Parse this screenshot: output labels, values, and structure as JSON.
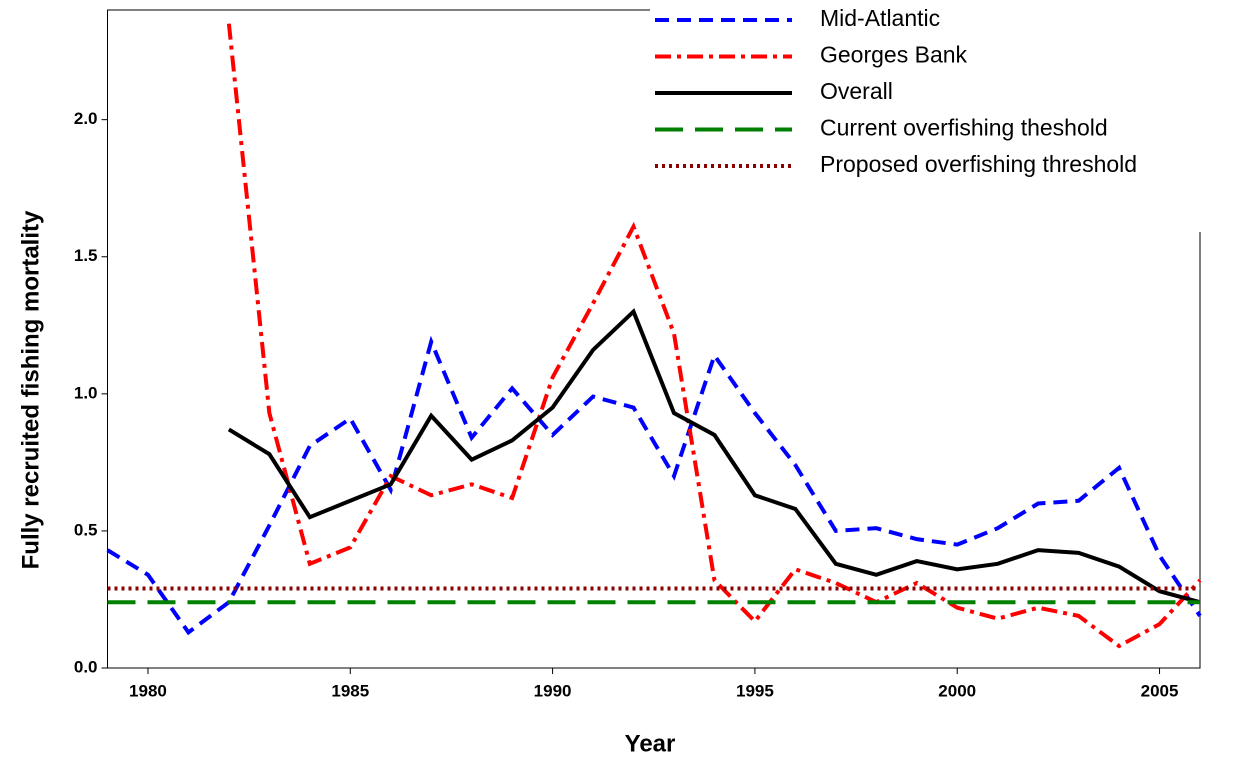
{
  "chart_data": {
    "type": "line",
    "x_label": "Year",
    "y_label": "Fully recruited fishing mortality",
    "x": [
      1979,
      1980,
      1981,
      1982,
      1983,
      1984,
      1985,
      1986,
      1987,
      1988,
      1989,
      1990,
      1991,
      1992,
      1993,
      1994,
      1995,
      1996,
      1997,
      1998,
      1999,
      2000,
      2001,
      2002,
      2003,
      2004,
      2005,
      2006
    ],
    "xlim": [
      1979,
      2006
    ],
    "xticks": [
      1980,
      1985,
      1990,
      1995,
      2000,
      2005
    ],
    "ylim": [
      0,
      2.4
    ],
    "yticks": [
      {
        "value": 0,
        "label": "0.0"
      },
      {
        "value": 0.5,
        "label": "0.5"
      },
      {
        "value": 1,
        "label": "1.0"
      },
      {
        "value": 1.5,
        "label": "1.5"
      },
      {
        "value": 2,
        "label": "2.0"
      }
    ],
    "series": [
      {
        "name": "Mid-Atlantic",
        "color": "#0000ff",
        "dash": "14 8",
        "values": [
          0.43,
          0.34,
          0.13,
          0.24,
          0.52,
          0.81,
          0.91,
          0.65,
          1.19,
          0.84,
          1.02,
          0.85,
          0.99,
          0.95,
          0.7,
          1.14,
          0.93,
          0.74,
          0.5,
          0.51,
          0.47,
          0.45,
          0.51,
          0.6,
          0.61,
          0.73,
          0.41,
          0.19
        ]
      },
      {
        "name": "Georges Bank",
        "color": "#ff0000",
        "dash": "16 6 4 6",
        "values": [
          null,
          null,
          null,
          2.35,
          0.93,
          0.38,
          0.44,
          0.7,
          0.63,
          0.67,
          0.62,
          1.06,
          1.33,
          1.61,
          1.22,
          0.32,
          0.17,
          0.36,
          0.31,
          0.24,
          0.31,
          0.22,
          0.18,
          0.22,
          0.19,
          0.08,
          0.16,
          0.32
        ]
      },
      {
        "name": "Overall",
        "color": "#000000",
        "dash": "none",
        "values": [
          null,
          null,
          null,
          0.87,
          0.78,
          0.55,
          0.61,
          0.67,
          0.92,
          0.76,
          0.83,
          0.95,
          1.16,
          1.3,
          0.93,
          0.85,
          0.63,
          0.58,
          0.38,
          0.34,
          0.39,
          0.36,
          0.38,
          0.43,
          0.42,
          0.37,
          0.28,
          0.24
        ]
      },
      {
        "name": "Current overfishing theshold",
        "color": "#008000",
        "dash": "28 12",
        "value": 0.24
      },
      {
        "name": "Proposed overfishing threshold",
        "color": "#8b0000",
        "dash": "3 4",
        "value": 0.29
      }
    ]
  }
}
